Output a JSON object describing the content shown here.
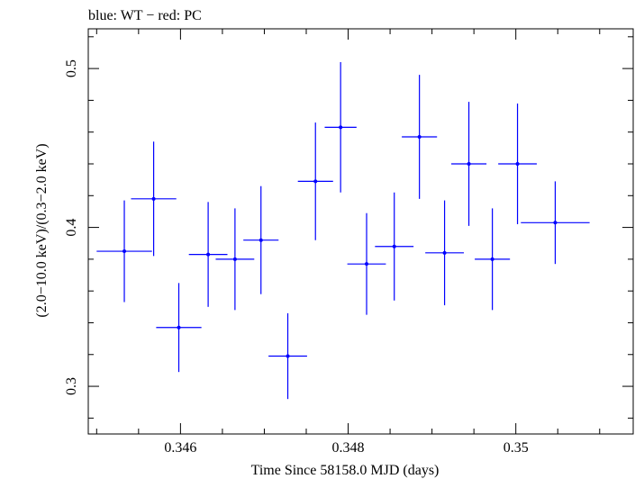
{
  "colors": {
    "series": "#0000ff",
    "axis": "#000000",
    "background": "#ffffff"
  },
  "chart_data": {
    "type": "scatter",
    "title": "blue: WT − red: PC",
    "xlabel": "Time Since 58158.0 MJD (days)",
    "ylabel": "(2.0−10.0 keV)/(0.3−2.0 keV)",
    "xlim": [
      0.3449,
      0.3514
    ],
    "ylim": [
      0.27,
      0.525
    ],
    "x_ticks": [
      {
        "value": 0.346,
        "label": "0.346"
      },
      {
        "value": 0.348,
        "label": "0.348"
      },
      {
        "value": 0.35,
        "label": "0.35"
      }
    ],
    "y_ticks": [
      {
        "value": 0.3,
        "label": "0.3"
      },
      {
        "value": 0.4,
        "label": "0.4"
      },
      {
        "value": 0.5,
        "label": "0.5"
      }
    ],
    "grid": false,
    "series": [
      {
        "points": [
          {
            "x": 0.34533,
            "xerr": 0.00033,
            "y": 0.385,
            "yerr": 0.032
          },
          {
            "x": 0.34568,
            "xerr": 0.00027,
            "y": 0.418,
            "yerr": 0.036
          },
          {
            "x": 0.34598,
            "xerr": 0.00027,
            "y": 0.337,
            "yerr": 0.028
          },
          {
            "x": 0.34633,
            "xerr": 0.00023,
            "y": 0.383,
            "yerr": 0.033
          },
          {
            "x": 0.34665,
            "xerr": 0.00023,
            "y": 0.38,
            "yerr": 0.032
          },
          {
            "x": 0.34696,
            "xerr": 0.00021,
            "y": 0.392,
            "yerr": 0.034
          },
          {
            "x": 0.34728,
            "xerr": 0.00023,
            "y": 0.319,
            "yerr": 0.027
          },
          {
            "x": 0.34761,
            "xerr": 0.00021,
            "y": 0.429,
            "yerr": 0.037
          },
          {
            "x": 0.34791,
            "xerr": 0.00019,
            "y": 0.463,
            "yerr": 0.041
          },
          {
            "x": 0.34822,
            "xerr": 0.00023,
            "y": 0.377,
            "yerr": 0.032
          },
          {
            "x": 0.34855,
            "xerr": 0.00023,
            "y": 0.388,
            "yerr": 0.034
          },
          {
            "x": 0.34885,
            "xerr": 0.00021,
            "y": 0.457,
            "yerr": 0.039
          },
          {
            "x": 0.34915,
            "xerr": 0.00023,
            "y": 0.384,
            "yerr": 0.033
          },
          {
            "x": 0.34944,
            "xerr": 0.00021,
            "y": 0.44,
            "yerr": 0.039
          },
          {
            "x": 0.34972,
            "xerr": 0.00021,
            "y": 0.38,
            "yerr": 0.032
          },
          {
            "x": 0.35002,
            "xerr": 0.00023,
            "y": 0.44,
            "yerr": 0.038
          },
          {
            "x": 0.35047,
            "xerr": 0.00041,
            "y": 0.403,
            "yerr": 0.026
          }
        ]
      }
    ]
  }
}
